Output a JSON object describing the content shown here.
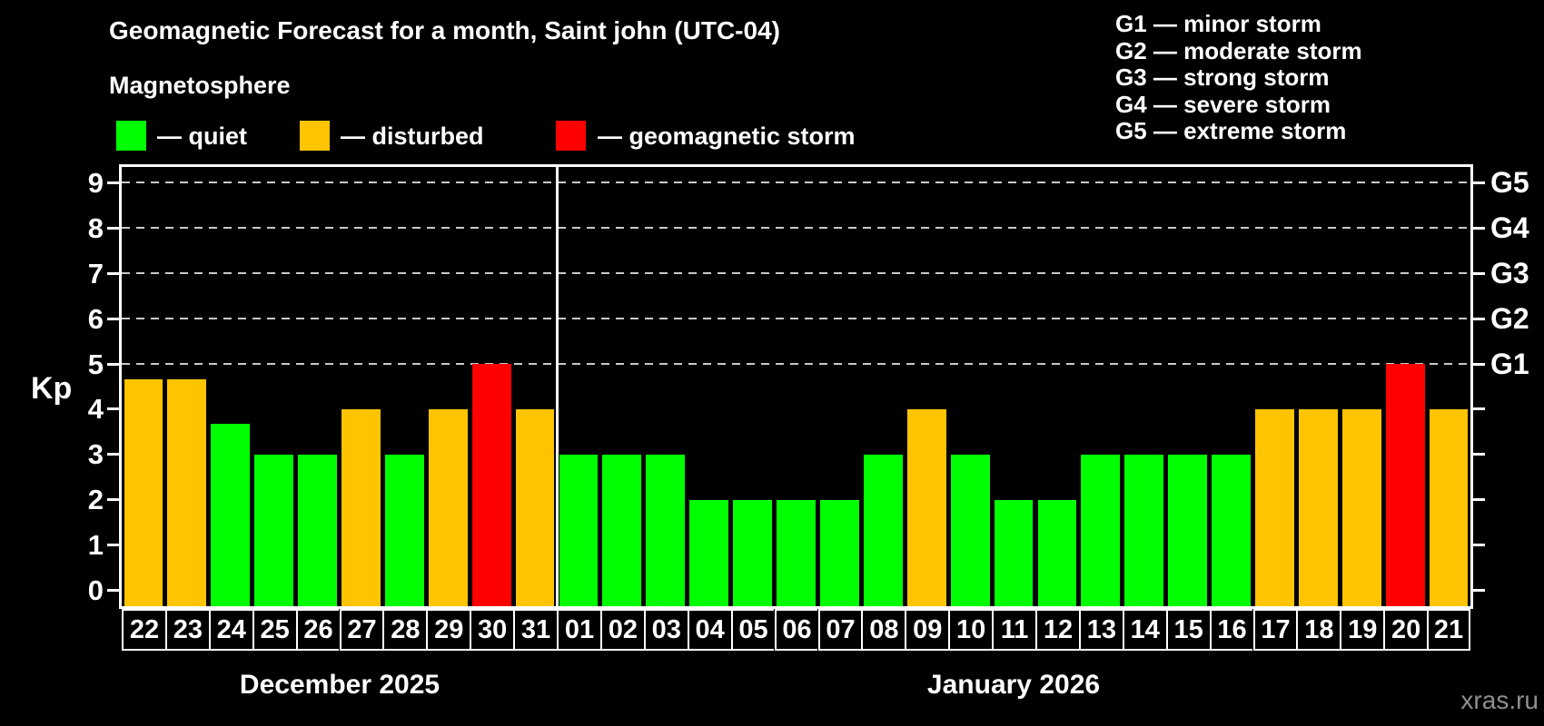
{
  "title": "Geomagnetic Forecast for a month, Saint john (UTC-04)",
  "subtitle": "Magnetosphere",
  "legend": {
    "items": [
      {
        "label": "— quiet",
        "level": "quiet"
      },
      {
        "label": "— disturbed",
        "level": "disturbed"
      },
      {
        "label": "— geomagnetic storm",
        "level": "storm"
      }
    ]
  },
  "g_legend": [
    "G1 — minor storm",
    "G2 — moderate storm",
    "G3 — strong storm",
    "G4 — severe storm",
    "G5 — extreme storm"
  ],
  "watermark": "xras.ru",
  "colors": {
    "quiet": "#00ff00",
    "disturbed": "#ffc400",
    "storm": "#ff0000",
    "background": "#000000",
    "frame": "#ffffff",
    "gridline": "#c9c9c9"
  },
  "chart_data": {
    "type": "bar",
    "title": "Geomagnetic Forecast for a month, Saint john (UTC-04)",
    "ylabel": "Kp",
    "ylim": [
      -0.35,
      9.35
    ],
    "yticks": [
      0,
      1,
      2,
      3,
      4,
      5,
      6,
      7,
      8,
      9
    ],
    "grid": "dashed horizontal lines at Kp 5-9 only",
    "g_levels": [
      {
        "kp": 5,
        "label": "G1"
      },
      {
        "kp": 6,
        "label": "G2"
      },
      {
        "kp": 7,
        "label": "G3"
      },
      {
        "kp": 8,
        "label": "G4"
      },
      {
        "kp": 9,
        "label": "G5"
      }
    ],
    "groups": [
      {
        "label": "December 2025",
        "days": [
          "22",
          "23",
          "24",
          "25",
          "26",
          "27",
          "28",
          "29",
          "30",
          "31"
        ],
        "values": [
          4.67,
          4.67,
          3.67,
          3,
          3,
          4,
          3,
          4,
          5,
          4
        ],
        "levels": [
          "disturbed",
          "disturbed",
          "quiet",
          "quiet",
          "quiet",
          "disturbed",
          "quiet",
          "disturbed",
          "storm",
          "disturbed"
        ]
      },
      {
        "label": "January 2026",
        "days": [
          "01",
          "02",
          "03",
          "04",
          "05",
          "06",
          "07",
          "08",
          "09",
          "10",
          "11",
          "12",
          "13",
          "14",
          "15",
          "16",
          "17",
          "18",
          "19",
          "20",
          "21"
        ],
        "values": [
          3,
          3,
          3,
          2,
          2,
          2,
          2,
          3,
          4,
          3,
          2,
          2,
          3,
          3,
          3,
          3,
          4,
          4,
          4,
          5,
          4
        ],
        "levels": [
          "quiet",
          "quiet",
          "quiet",
          "quiet",
          "quiet",
          "quiet",
          "quiet",
          "quiet",
          "disturbed",
          "quiet",
          "quiet",
          "quiet",
          "quiet",
          "quiet",
          "quiet",
          "quiet",
          "disturbed",
          "disturbed",
          "disturbed",
          "storm",
          "disturbed"
        ]
      }
    ]
  }
}
